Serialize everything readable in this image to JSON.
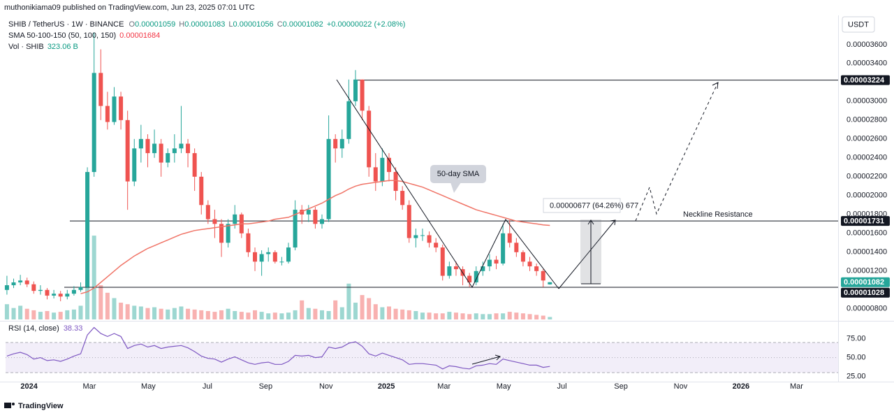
{
  "header": {
    "publisher": "muthonikiama09 published on TradingView.com, Jun 23, 2025 07:01 UTC"
  },
  "legend": {
    "symbol": "SHIB / TetherUS · 1W · BINANCE",
    "o_label": "O",
    "o": "0.00001059",
    "h_label": "H",
    "h": "0.00001083",
    "l_label": "L",
    "l": "0.00001056",
    "c_label": "C",
    "c": "0.00001082",
    "change": "+0.00000022 (+2.08%)",
    "sma_name": "SMA 50-100-150 (50, 100, 150)",
    "sma_value": "0.00001684",
    "vol_name": "Vol · SHIB",
    "vol_value": "323.06 B"
  },
  "chart_data": [
    {
      "type": "candlestick",
      "up_color": "#26a69a",
      "down_color": "#ef5350",
      "sma_color": "#f07467",
      "currency": "USDT",
      "x": [
        0,
        1,
        2,
        3,
        4,
        5,
        6,
        7,
        8,
        9,
        10,
        11,
        12,
        13,
        14,
        15,
        16,
        17,
        18,
        19,
        20,
        21,
        22,
        23,
        24,
        25,
        26,
        27,
        28,
        29,
        30,
        31,
        32,
        33,
        34,
        35,
        36,
        37,
        38,
        39,
        40,
        41,
        42,
        43,
        44,
        45,
        46,
        47,
        48,
        49,
        50,
        51,
        52,
        53,
        54,
        55,
        56,
        57,
        58,
        59,
        60,
        61,
        62,
        63,
        64,
        65,
        66,
        67,
        68,
        69,
        70,
        71,
        72,
        73,
        74,
        75,
        76,
        77,
        78,
        79,
        80,
        81
      ],
      "open": [
        1e-05,
        1.05e-05,
        1.08e-05,
        1.1e-05,
        1.06e-05,
        9.9e-06,
        1e-05,
        9.4e-06,
        9.6e-06,
        9.3e-06,
        9.6e-06,
        1e-05,
        1.03e-05,
        2.25e-05,
        3.3e-05,
        2.95e-05,
        2.78e-05,
        3.05e-05,
        2.8e-05,
        2.15e-05,
        2.5e-05,
        2.6e-05,
        2.45e-05,
        2.55e-05,
        2.35e-05,
        2.45e-05,
        2.5e-05,
        2.55e-05,
        2.45e-05,
        2.2e-05,
        1.9e-05,
        1.75e-05,
        1.7e-05,
        1.5e-05,
        1.7e-05,
        1.8e-05,
        1.6e-05,
        1.4e-05,
        1.3e-05,
        1.38e-05,
        1.4e-05,
        1.3e-05,
        1.3e-05,
        1.45e-05,
        1.85e-05,
        1.8e-05,
        1.85e-05,
        1.7e-05,
        1.75e-05,
        2.6e-05,
        2.5e-05,
        2.6e-05,
        3e-05,
        3.23e-05,
        2.9e-05,
        2.3e-05,
        2.15e-05,
        2.4e-05,
        2.25e-05,
        2.05e-05,
        1.9e-05,
        1.55e-05,
        1.58e-05,
        1.58e-05,
        1.5e-05,
        1.45e-05,
        1.15e-05,
        1.25e-05,
        1.22e-05,
        1.15e-05,
        1.08e-05,
        1.2e-05,
        1.25e-05,
        1.32e-05,
        1.28e-05,
        1.6e-05,
        1.5e-05,
        1.4e-05,
        1.3e-05,
        1.25e-05,
        1.2e-05,
        1.059e-05
      ],
      "high": [
        1.15e-05,
        1.12e-05,
        1.16e-05,
        1.13e-05,
        1.09e-05,
        1.05e-05,
        1.02e-05,
        1e-05,
        9.9e-06,
        1e-05,
        1.04e-05,
        1.08e-05,
        2.3e-05,
        3.73e-05,
        3.55e-05,
        3.1e-05,
        3.15e-05,
        3.1e-05,
        2.9e-05,
        2.6e-05,
        2.75e-05,
        2.65e-05,
        2.7e-05,
        2.6e-05,
        2.5e-05,
        2.65e-05,
        2.95e-05,
        2.6e-05,
        2.5e-05,
        2.25e-05,
        1.95e-05,
        1.85e-05,
        1.75e-05,
        1.75e-05,
        1.9e-05,
        1.82e-05,
        1.65e-05,
        1.45e-05,
        1.42e-05,
        1.45e-05,
        1.42e-05,
        1.35e-05,
        1.5e-05,
        1.95e-05,
        1.9e-05,
        1.9e-05,
        1.88e-05,
        1.8e-05,
        2.85e-05,
        2.65e-05,
        2.7e-05,
        3.23e-05,
        3.33e-05,
        3.23e-05,
        2.95e-05,
        2.45e-05,
        2.5e-05,
        2.45e-05,
        2.3e-05,
        2.1e-05,
        1.95e-05,
        1.65e-05,
        1.65e-05,
        1.62e-05,
        1.55e-05,
        1.48e-05,
        1.3e-05,
        1.3e-05,
        1.25e-05,
        1.18e-05,
        1.25e-05,
        1.3e-05,
        1.38e-05,
        1.36e-05,
        1.7e-05,
        1.74e-05,
        1.55e-05,
        1.42e-05,
        1.35e-05,
        1.28e-05,
        1.22e-05,
        1.083e-05
      ],
      "low": [
        9.5e-06,
        1.02e-05,
        1.05e-05,
        1.03e-05,
        9.6e-06,
        9.5e-06,
        9e-06,
        9.1e-06,
        8.8e-06,
        9e-06,
        9.4e-06,
        9.8e-06,
        1.02e-05,
        2.2e-05,
        2.8e-05,
        2.7e-05,
        2.75e-05,
        2.7e-05,
        1.85e-05,
        2.1e-05,
        2.35e-05,
        2.3e-05,
        2.4e-05,
        2.2e-05,
        2.3e-05,
        2.35e-05,
        2.45e-05,
        2.3e-05,
        2.05e-05,
        1.8e-05,
        1.7e-05,
        1.55e-05,
        1.35e-05,
        1.45e-05,
        1.65e-05,
        1.55e-05,
        1.35e-05,
        1.2e-05,
        1.15e-05,
        1.3e-05,
        1.28e-05,
        1.26e-05,
        1.28e-05,
        1.42e-05,
        1.7e-05,
        1.72e-05,
        1.65e-05,
        1.65e-05,
        1.72e-05,
        2.35e-05,
        2.4e-05,
        2.55e-05,
        2.95e-05,
        2.8e-05,
        2.2e-05,
        2.05e-05,
        2.1e-05,
        2.15e-05,
        1.95e-05,
        1.85e-05,
        1.5e-05,
        1.45e-05,
        1.52e-05,
        1.45e-05,
        1.4e-05,
        1.1e-05,
        1.12e-05,
        1.15e-05,
        1.05e-05,
        1.03e-05,
        1.05e-05,
        1.15e-05,
        1.2e-05,
        1.22e-05,
        1.26e-05,
        1.45e-05,
        1.35e-05,
        1.25e-05,
        1.2e-05,
        1.15e-05,
        1.03e-05,
        1.056e-05
      ],
      "close": [
        1.05e-05,
        1.08e-05,
        1.1e-05,
        1.06e-05,
        9.9e-06,
        1e-05,
        9.4e-06,
        9.6e-06,
        9.3e-06,
        9.6e-06,
        1e-05,
        1.03e-05,
        2.25e-05,
        3.3e-05,
        2.95e-05,
        2.78e-05,
        3.05e-05,
        2.8e-05,
        2.15e-05,
        2.5e-05,
        2.6e-05,
        2.45e-05,
        2.55e-05,
        2.35e-05,
        2.45e-05,
        2.5e-05,
        2.55e-05,
        2.45e-05,
        2.2e-05,
        1.9e-05,
        1.75e-05,
        1.7e-05,
        1.5e-05,
        1.7e-05,
        1.8e-05,
        1.6e-05,
        1.4e-05,
        1.3e-05,
        1.38e-05,
        1.4e-05,
        1.3e-05,
        1.3e-05,
        1.45e-05,
        1.85e-05,
        1.8e-05,
        1.85e-05,
        1.7e-05,
        1.75e-05,
        2.6e-05,
        2.5e-05,
        2.6e-05,
        3e-05,
        3.23e-05,
        2.9e-05,
        2.3e-05,
        2.15e-05,
        2.4e-05,
        2.25e-05,
        2.05e-05,
        1.9e-05,
        1.55e-05,
        1.58e-05,
        1.58e-05,
        1.5e-05,
        1.45e-05,
        1.15e-05,
        1.25e-05,
        1.22e-05,
        1.15e-05,
        1.08e-05,
        1.2e-05,
        1.25e-05,
        1.32e-05,
        1.28e-05,
        1.6e-05,
        1.5e-05,
        1.4e-05,
        1.3e-05,
        1.25e-05,
        1.2e-05,
        1.1e-05,
        1.082e-05
      ],
      "volume": [
        2000,
        1500,
        1800,
        1400,
        1200,
        1000,
        1100,
        900,
        1000,
        1200,
        1300,
        1800,
        6000,
        11000,
        4500,
        3500,
        2800,
        2200,
        2000,
        1800,
        1700,
        1500,
        1600,
        1400,
        1300,
        1500,
        1700,
        1400,
        1300,
        1200,
        1100,
        1000,
        1200,
        1400,
        1100,
        1000,
        900,
        1200,
        1000,
        800,
        900,
        800,
        900,
        1200,
        2500,
        1500,
        1400,
        1200,
        1100,
        2500,
        1600,
        4700,
        2200,
        3200,
        2800,
        2000,
        1600,
        1700,
        1400,
        1300,
        1200,
        1100,
        900,
        900,
        800,
        800,
        1000,
        900,
        800,
        700,
        800,
        700,
        700,
        800,
        800,
        1000,
        900,
        800,
        700,
        600,
        500,
        323.06
      ],
      "volume_ylim": [
        0,
        40000
      ],
      "sma": [
        null,
        null,
        null,
        null,
        null,
        null,
        null,
        null,
        null,
        null,
        null,
        9.6e-06,
        9.8e-06,
        1.02e-05,
        1.08e-05,
        1.14e-05,
        1.2e-05,
        1.26e-05,
        1.31e-05,
        1.36e-05,
        1.4e-05,
        1.44e-05,
        1.47e-05,
        1.5e-05,
        1.53e-05,
        1.56e-05,
        1.59e-05,
        1.61e-05,
        1.63e-05,
        1.64e-05,
        1.65e-05,
        1.66e-05,
        1.67e-05,
        1.68e-05,
        1.69e-05,
        1.7e-05,
        1.7e-05,
        1.71e-05,
        1.72e-05,
        1.73e-05,
        1.75e-05,
        1.76e-05,
        1.77e-05,
        1.8e-05,
        1.83e-05,
        1.86e-05,
        1.89e-05,
        1.92e-05,
        1.96e-05,
        2e-05,
        2.03e-05,
        2.07e-05,
        2.1e-05,
        2.12e-05,
        2.13e-05,
        2.14e-05,
        2.15e-05,
        2.16e-05,
        2.16e-05,
        2.15e-05,
        2.13e-05,
        2.11e-05,
        2.09e-05,
        2.06e-05,
        2.03e-05,
        2e-05,
        1.97e-05,
        1.94e-05,
        1.91e-05,
        1.88e-05,
        1.85e-05,
        1.83e-05,
        1.81e-05,
        1.79e-05,
        1.77e-05,
        1.75e-05,
        1.73e-05,
        1.72e-05,
        1.71e-05,
        1.7e-05,
        1.69e-05,
        1.684e-05
      ],
      "xlim": [
        -0.2,
        124
      ],
      "xticks": [
        {
          "value": 3.3,
          "label": "2024"
        },
        {
          "value": 12.3,
          "label": "Mar"
        },
        {
          "value": 21.1,
          "label": "May"
        },
        {
          "value": 29.9,
          "label": "Jul"
        },
        {
          "value": 38.6,
          "label": "Sep"
        },
        {
          "value": 47.6,
          "label": "Nov"
        },
        {
          "value": 56.6,
          "label": "2025"
        },
        {
          "value": 65.2,
          "label": "Mar"
        },
        {
          "value": 74.1,
          "label": "May"
        },
        {
          "value": 82.8,
          "label": "Jul"
        },
        {
          "value": 91.6,
          "label": "Sep"
        },
        {
          "value": 100.5,
          "label": "Nov"
        },
        {
          "value": 109.5,
          "label": "2026"
        },
        {
          "value": 117.8,
          "label": "Mar"
        }
      ],
      "ylim": [
        6.8e-06,
        3.91e-05
      ],
      "yticks": [
        {
          "value": 3.6e-05,
          "label": "0.00003600"
        },
        {
          "value": 3.4e-05,
          "label": "0.00003400"
        },
        {
          "value": 3e-05,
          "label": "0.00003000"
        },
        {
          "value": 2.8e-05,
          "label": "0.00002800"
        },
        {
          "value": 2.6e-05,
          "label": "0.00002600"
        },
        {
          "value": 2.4e-05,
          "label": "0.00002400"
        },
        {
          "value": 2.2e-05,
          "label": "0.00002200"
        },
        {
          "value": 2e-05,
          "label": "0.00002000"
        },
        {
          "value": 1.8e-05,
          "label": "0.00001800"
        },
        {
          "value": 1.6e-05,
          "label": "0.00001600"
        },
        {
          "value": 1.4e-05,
          "label": "0.00001400"
        },
        {
          "value": 1.2e-05,
          "label": "0.00001200"
        },
        {
          "value": 8e-06,
          "label": "0.00000800"
        }
      ],
      "price_labels": [
        {
          "value": 3.224e-05,
          "label": "0.00003224",
          "color": "#131722"
        },
        {
          "value": 1.731e-05,
          "label": "0.00001731",
          "color": "#131722"
        },
        {
          "value": 1.082e-05,
          "label": "0.00001082",
          "color": "#26a69a"
        },
        {
          "value": 1.028e-05,
          "label": "0.00001028",
          "color": "#131722"
        }
      ]
    },
    {
      "type": "line",
      "title": "RSI (14, close)",
      "last_label": "38.33",
      "color": "#7e57c2",
      "values": [
        52,
        55,
        57,
        54,
        48,
        50,
        46,
        47,
        45,
        48,
        52,
        55,
        80,
        90,
        82,
        78,
        82,
        78,
        62,
        66,
        68,
        64,
        66,
        62,
        64,
        65,
        66,
        63,
        58,
        52,
        49,
        48,
        44,
        48,
        51,
        47,
        43,
        41,
        43,
        44,
        41,
        41,
        45,
        53,
        52,
        53,
        50,
        51,
        64,
        62,
        64,
        69,
        71,
        65,
        55,
        52,
        56,
        53,
        50,
        47,
        41,
        42,
        42,
        41,
        40,
        35,
        39,
        38,
        36,
        35,
        39,
        40,
        42,
        41,
        48,
        46,
        44,
        42,
        40,
        40,
        37,
        38.33
      ],
      "ylim": [
        19,
        96
      ],
      "yticks": [
        {
          "value": 75,
          "label": "75.00"
        },
        {
          "value": 50,
          "label": "50.00"
        },
        {
          "value": 25,
          "label": "25.00"
        }
      ],
      "band": [
        30,
        70
      ],
      "midline": 50
    }
  ],
  "annotations": {
    "sma_callout": "50-day SMA",
    "measure": "0.00000677 (64.26%) 677",
    "neckline": "Neckline Resistance"
  },
  "footer": {
    "brand": "TradingView"
  }
}
